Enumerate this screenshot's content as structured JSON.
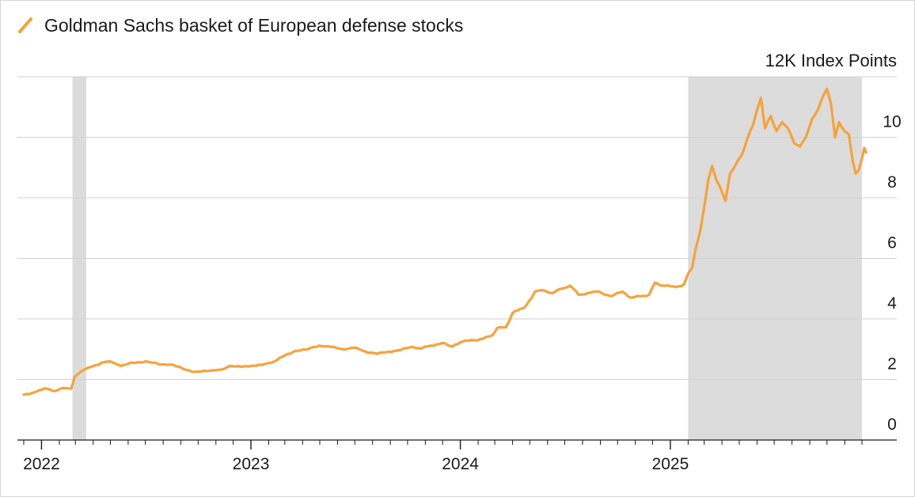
{
  "chart_data": {
    "type": "line",
    "title": "",
    "xlabel": "",
    "ylabel": "Index Points",
    "y_unit_label": "12K Index Points",
    "ylim": [
      0,
      12
    ],
    "yticks": [
      0,
      2,
      4,
      6,
      8,
      10
    ],
    "ytick_labels": [
      "0",
      "2",
      "4",
      "6",
      "8",
      "10"
    ],
    "xlim": [
      "2021-11-20",
      "2025-12-12"
    ],
    "x_tick_labels": [
      "2022",
      "2023",
      "2024",
      "2025"
    ],
    "grid": "horizontal",
    "legend_position": "top-left",
    "shaded_periods": [
      {
        "start": "2022-02-24",
        "end": "2022-03-20"
      },
      {
        "start": "2025-02-01",
        "end": "2025-12-01"
      }
    ],
    "series": [
      {
        "name": "Goldman Sachs basket of European defense stocks",
        "color": "#f7a23b",
        "points": [
          [
            "2021-12-01",
            1.5
          ],
          [
            "2021-12-20",
            1.58
          ],
          [
            "2022-01-10",
            1.7
          ],
          [
            "2022-01-25",
            1.62
          ],
          [
            "2022-02-10",
            1.72
          ],
          [
            "2022-02-22",
            1.7
          ],
          [
            "2022-02-28",
            2.1
          ],
          [
            "2022-03-10",
            2.25
          ],
          [
            "2022-03-25",
            2.4
          ],
          [
            "2022-04-15",
            2.55
          ],
          [
            "2022-05-01",
            2.6
          ],
          [
            "2022-05-20",
            2.45
          ],
          [
            "2022-06-10",
            2.55
          ],
          [
            "2022-07-01",
            2.6
          ],
          [
            "2022-07-25",
            2.5
          ],
          [
            "2022-08-15",
            2.5
          ],
          [
            "2022-09-05",
            2.35
          ],
          [
            "2022-09-25",
            2.25
          ],
          [
            "2022-10-15",
            2.28
          ],
          [
            "2022-10-30",
            2.3
          ],
          [
            "2022-11-15",
            2.35
          ],
          [
            "2022-11-25",
            2.45
          ],
          [
            "2022-12-15",
            2.42
          ],
          [
            "2023-01-01",
            2.45
          ],
          [
            "2023-01-20",
            2.48
          ],
          [
            "2023-02-05",
            2.55
          ],
          [
            "2023-02-25",
            2.75
          ],
          [
            "2023-03-20",
            2.95
          ],
          [
            "2023-04-10",
            3.0
          ],
          [
            "2023-04-30",
            3.12
          ],
          [
            "2023-05-20",
            3.08
          ],
          [
            "2023-06-10",
            3.0
          ],
          [
            "2023-06-30",
            3.05
          ],
          [
            "2023-07-20",
            2.92
          ],
          [
            "2023-08-10",
            2.85
          ],
          [
            "2023-08-30",
            2.92
          ],
          [
            "2023-09-20",
            2.98
          ],
          [
            "2023-10-10",
            3.08
          ],
          [
            "2023-10-25",
            3.02
          ],
          [
            "2023-11-10",
            3.12
          ],
          [
            "2023-11-30",
            3.2
          ],
          [
            "2023-12-15",
            3.1
          ],
          [
            "2024-01-05",
            3.25
          ],
          [
            "2024-01-25",
            3.3
          ],
          [
            "2024-02-10",
            3.35
          ],
          [
            "2024-02-25",
            3.45
          ],
          [
            "2024-03-05",
            3.7
          ],
          [
            "2024-03-20",
            3.72
          ],
          [
            "2024-04-01",
            4.2
          ],
          [
            "2024-04-20",
            4.35
          ],
          [
            "2024-05-10",
            4.9
          ],
          [
            "2024-05-25",
            4.95
          ],
          [
            "2024-06-10",
            4.85
          ],
          [
            "2024-06-25",
            5.0
          ],
          [
            "2024-07-10",
            5.1
          ],
          [
            "2024-07-25",
            4.8
          ],
          [
            "2024-08-10",
            4.85
          ],
          [
            "2024-08-30",
            4.9
          ],
          [
            "2024-09-20",
            4.75
          ],
          [
            "2024-10-10",
            4.9
          ],
          [
            "2024-10-25",
            4.7
          ],
          [
            "2024-11-10",
            4.75
          ],
          [
            "2024-11-25",
            4.8
          ],
          [
            "2024-12-05",
            5.2
          ],
          [
            "2024-12-20",
            5.1
          ],
          [
            "2025-01-10",
            5.05
          ],
          [
            "2025-01-25",
            5.15
          ],
          [
            "2025-02-01",
            5.5
          ],
          [
            "2025-02-08",
            5.7
          ],
          [
            "2025-02-14",
            6.3
          ],
          [
            "2025-02-22",
            6.9
          ],
          [
            "2025-03-02",
            7.8
          ],
          [
            "2025-03-08",
            8.6
          ],
          [
            "2025-03-15",
            9.05
          ],
          [
            "2025-03-22",
            8.6
          ],
          [
            "2025-04-01",
            8.2
          ],
          [
            "2025-04-07",
            7.9
          ],
          [
            "2025-04-15",
            8.8
          ],
          [
            "2025-04-25",
            9.1
          ],
          [
            "2025-05-05",
            9.4
          ],
          [
            "2025-05-15",
            9.95
          ],
          [
            "2025-05-25",
            10.4
          ],
          [
            "2025-06-01",
            10.9
          ],
          [
            "2025-06-08",
            11.3
          ],
          [
            "2025-06-15",
            10.3
          ],
          [
            "2025-06-25",
            10.7
          ],
          [
            "2025-07-05",
            10.2
          ],
          [
            "2025-07-15",
            10.5
          ],
          [
            "2025-07-25",
            10.3
          ],
          [
            "2025-08-05",
            9.8
          ],
          [
            "2025-08-15",
            9.7
          ],
          [
            "2025-08-25",
            10.0
          ],
          [
            "2025-09-05",
            10.6
          ],
          [
            "2025-09-15",
            10.9
          ],
          [
            "2025-09-25",
            11.4
          ],
          [
            "2025-10-01",
            11.6
          ],
          [
            "2025-10-08",
            11.1
          ],
          [
            "2025-10-15",
            10.0
          ],
          [
            "2025-10-22",
            10.5
          ],
          [
            "2025-11-01",
            10.2
          ],
          [
            "2025-11-08",
            10.1
          ],
          [
            "2025-11-15",
            9.2
          ],
          [
            "2025-11-20",
            8.8
          ],
          [
            "2025-11-25",
            8.9
          ],
          [
            "2025-12-01",
            9.3
          ],
          [
            "2025-12-05",
            9.65
          ],
          [
            "2025-12-08",
            9.5
          ]
        ]
      }
    ]
  }
}
